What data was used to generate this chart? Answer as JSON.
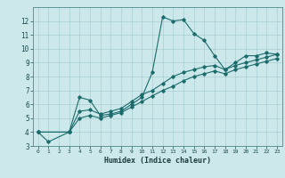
{
  "title": "",
  "xlabel": "Humidex (Indice chaleur)",
  "ylabel": "",
  "bg_color": "#cde8eb",
  "grid_color": "#a8cfd4",
  "line_color": "#1a6b6b",
  "xlim": [
    -0.5,
    23.5
  ],
  "ylim": [
    3,
    13
  ],
  "xticks": [
    0,
    1,
    2,
    3,
    4,
    5,
    6,
    7,
    8,
    9,
    10,
    11,
    12,
    13,
    14,
    15,
    16,
    17,
    18,
    19,
    20,
    21,
    22,
    23
  ],
  "yticks": [
    3,
    4,
    5,
    6,
    7,
    8,
    9,
    10,
    11,
    12
  ],
  "series1_x": [
    0,
    1,
    3,
    4,
    5,
    6,
    7,
    8,
    9,
    10,
    11,
    12,
    13,
    14,
    15,
    16,
    17,
    18,
    19,
    20,
    21,
    22,
    23
  ],
  "series1_y": [
    4.0,
    3.3,
    4.0,
    6.5,
    6.3,
    5.2,
    5.3,
    5.5,
    6.0,
    6.5,
    8.3,
    12.3,
    12.0,
    12.1,
    11.1,
    10.6,
    9.5,
    8.5,
    9.0,
    9.5,
    9.5,
    9.7,
    9.6
  ],
  "series2_x": [
    0,
    3,
    4,
    5,
    6,
    7,
    8,
    9,
    10,
    11,
    12,
    13,
    14,
    15,
    16,
    17,
    18,
    19,
    20,
    21,
    22,
    23
  ],
  "series2_y": [
    4.0,
    4.0,
    5.5,
    5.6,
    5.3,
    5.5,
    5.7,
    6.2,
    6.7,
    7.0,
    7.5,
    8.0,
    8.3,
    8.5,
    8.7,
    8.8,
    8.5,
    8.8,
    9.0,
    9.2,
    9.4,
    9.6
  ],
  "series3_x": [
    0,
    3,
    4,
    5,
    6,
    7,
    8,
    9,
    10,
    11,
    12,
    13,
    14,
    15,
    16,
    17,
    18,
    19,
    20,
    21,
    22,
    23
  ],
  "series3_y": [
    4.0,
    4.0,
    5.0,
    5.2,
    5.0,
    5.2,
    5.4,
    5.8,
    6.2,
    6.6,
    7.0,
    7.3,
    7.7,
    8.0,
    8.2,
    8.4,
    8.2,
    8.5,
    8.7,
    8.9,
    9.1,
    9.3
  ]
}
